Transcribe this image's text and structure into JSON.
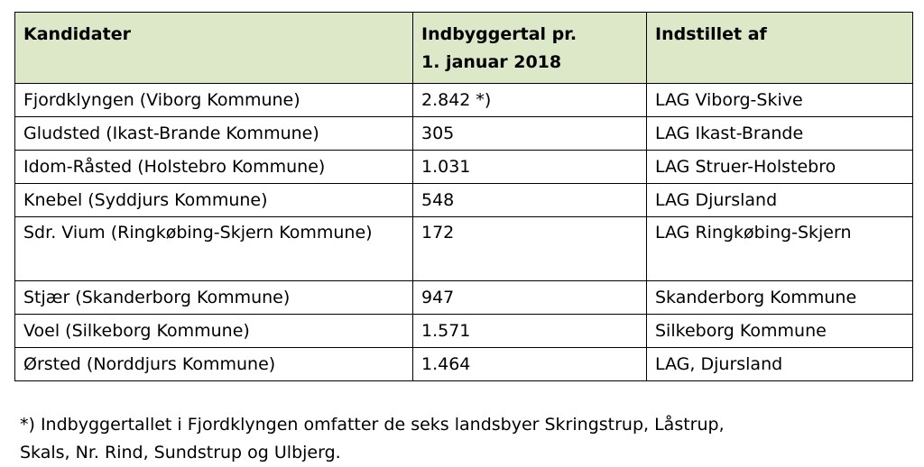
{
  "table": {
    "headers": {
      "col1": "Kandidater",
      "col2_line1": "Indbyggertal pr.",
      "col2_line2": "1. januar 2018",
      "col3": "Indstillet af"
    },
    "header_background": "#dde8c9",
    "rows": [
      {
        "kandidat": "Fjordklyngen (Viborg Kommune)",
        "indbyggertal": "2.842 *)",
        "indstillet_af": "LAG Viborg-Skive"
      },
      {
        "kandidat": "Gludsted (Ikast-Brande Kommune)",
        "indbyggertal": "305",
        "indstillet_af": "LAG Ikast-Brande"
      },
      {
        "kandidat": "Idom-Råsted (Holstebro Kommune)",
        "indbyggertal": "1.031",
        "indstillet_af": "LAG Struer-Holstebro"
      },
      {
        "kandidat": "Knebel (Syddjurs Kommune)",
        "indbyggertal": "548",
        "indstillet_af": "LAG Djursland"
      },
      {
        "kandidat": "Sdr. Vium (Ringkøbing-Skjern Kommune)",
        "indbyggertal": "172",
        "indstillet_af": "LAG Ringkøbing-Skjern"
      },
      {
        "kandidat": "Stjær (Skanderborg Kommune)",
        "indbyggertal": "947",
        "indstillet_af": "Skanderborg Kommune"
      },
      {
        "kandidat": "Voel (Silkeborg Kommune)",
        "indbyggertal": "1.571",
        "indstillet_af": "Silkeborg Kommune"
      },
      {
        "kandidat": "Ørsted (Norddjurs Kommune)",
        "indbyggertal": "1.464",
        "indstillet_af": "LAG, Djursland"
      }
    ]
  },
  "footnote": {
    "line1": "*) Indbyggertallet i Fjordklyngen omfatter de seks landsbyer Skringstrup, Låstrup,",
    "line2": "Skals, Nr. Rind, Sundstrup og Ulbjerg."
  }
}
